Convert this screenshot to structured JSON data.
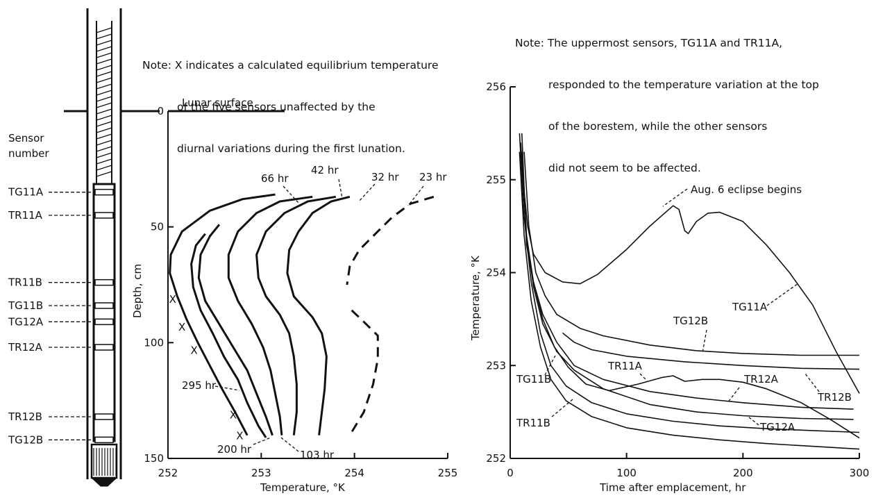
{
  "notes": {
    "left": [
      "Note: X indicates a calculated equilibrium temperature",
      "of the five sensors unaffected by the",
      "diurnal variations during the first lunation."
    ],
    "right": [
      "Note: The uppermost sensors, TG11A and TR11A,",
      "responded to the temperature variation at the top",
      "of the borestem, while the other sensors",
      "did not seem to be affected."
    ]
  },
  "probe": {
    "title_line1": "Sensor",
    "title_line2": "number",
    "sensors": [
      {
        "label": "TG11A",
        "depth": 35
      },
      {
        "label": "TR11A",
        "depth": 45
      },
      {
        "label": "TR11B",
        "depth": 74
      },
      {
        "label": "TG11B",
        "depth": 84
      },
      {
        "label": "TG12A",
        "depth": 91
      },
      {
        "label": "TR12A",
        "depth": 102
      },
      {
        "label": "TR12B",
        "depth": 132
      },
      {
        "label": "TG12B",
        "depth": 142
      }
    ]
  },
  "chart_data": [
    {
      "type": "line",
      "xlabel": "Temperature, °K",
      "ylabel": "Depth, cm",
      "xlim": [
        252,
        255
      ],
      "ylim": [
        0,
        150
      ],
      "y_inverted": true,
      "xticks": [
        "252",
        "253",
        "254",
        "255"
      ],
      "yticks": [
        "0",
        "50",
        "100",
        "150"
      ],
      "surface_label": "Lunar surface",
      "series": [
        {
          "name": "23 hr",
          "dashed": true,
          "points": [
            [
              254.85,
              37
            ],
            [
              254.6,
              40
            ],
            [
              254.4,
              46
            ],
            [
              254.2,
              54
            ],
            [
              254.05,
              60
            ],
            [
              253.95,
              67
            ],
            [
              253.92,
              75
            ]
          ]
        },
        {
          "name": "23 hr",
          "dashed": true,
          "points": [
            [
              253.97,
              86
            ],
            [
              254.1,
              91
            ],
            [
              254.25,
              97
            ],
            [
              254.25,
              107
            ],
            [
              254.2,
              118
            ],
            [
              254.1,
              130
            ],
            [
              253.95,
              140
            ]
          ]
        },
        {
          "name": "32 hr",
          "points": [
            [
              253.95,
              37
            ],
            [
              253.75,
              39
            ],
            [
              253.55,
              44
            ],
            [
              253.4,
              52
            ],
            [
              253.3,
              60
            ],
            [
              253.28,
              70
            ],
            [
              253.35,
              80
            ],
            [
              253.55,
              89
            ],
            [
              253.65,
              96
            ],
            [
              253.7,
              106
            ],
            [
              253.68,
              120
            ],
            [
              253.62,
              140
            ]
          ]
        },
        {
          "name": "42 hr",
          "points": [
            [
              253.8,
              37
            ],
            [
              253.5,
              39
            ],
            [
              253.25,
              44
            ],
            [
              253.05,
              52
            ],
            [
              252.95,
              62
            ],
            [
              252.97,
              72
            ],
            [
              253.05,
              80
            ],
            [
              253.2,
              88
            ],
            [
              253.3,
              96
            ],
            [
              253.35,
              106
            ],
            [
              253.38,
              118
            ],
            [
              253.38,
              130
            ],
            [
              253.35,
              140
            ]
          ]
        },
        {
          "name": "66 hr",
          "points": [
            [
              253.55,
              37
            ],
            [
              253.2,
              39
            ],
            [
              252.95,
              44
            ],
            [
              252.75,
              52
            ],
            [
              252.65,
              62
            ],
            [
              252.65,
              72
            ],
            [
              252.75,
              82
            ],
            [
              252.9,
              92
            ],
            [
              253.02,
              102
            ],
            [
              253.1,
              112
            ],
            [
              253.15,
              122
            ],
            [
              253.2,
              132
            ],
            [
              253.22,
              140
            ]
          ]
        },
        {
          "name": "",
          "points": [
            [
              252.55,
              49
            ],
            [
              252.45,
              54
            ],
            [
              252.35,
              62
            ],
            [
              252.33,
              72
            ],
            [
              252.4,
              82
            ],
            [
              252.55,
              92
            ],
            [
              252.7,
              102
            ],
            [
              252.85,
              112
            ],
            [
              252.95,
              122
            ],
            [
              253.05,
              132
            ],
            [
              253.12,
              140
            ]
          ]
        },
        {
          "name": "",
          "points": [
            [
              252.4,
              53
            ],
            [
              252.3,
              58
            ],
            [
              252.25,
              66
            ],
            [
              252.27,
              76
            ],
            [
              252.35,
              86
            ],
            [
              252.48,
              96
            ],
            [
              252.6,
              106
            ],
            [
              252.75,
              116
            ],
            [
              252.85,
              126
            ],
            [
              252.97,
              136
            ],
            [
              253.05,
              141
            ]
          ]
        },
        {
          "name": "",
          "points": [
            [
              253.15,
              36
            ],
            [
              252.8,
              38
            ],
            [
              252.45,
              43
            ],
            [
              252.15,
              52
            ],
            [
              252.03,
              62
            ],
            [
              252.02,
              70
            ],
            [
              252.1,
              80
            ],
            [
              252.2,
              90
            ],
            [
              252.32,
              100
            ],
            [
              252.45,
              110
            ],
            [
              252.58,
              120
            ],
            [
              252.72,
              130
            ],
            [
              252.85,
              140
            ]
          ]
        }
      ],
      "equilibrium_points": [
        [
          252.05,
          81
        ],
        [
          252.15,
          93
        ],
        [
          252.28,
          103
        ],
        [
          252.7,
          131
        ],
        [
          252.77,
          140
        ]
      ],
      "annotations": [
        "66 hr",
        "42 hr",
        "32 hr",
        "23 hr",
        "295 hr",
        "200 hr",
        "103 hr"
      ],
      "x_marker": "X"
    },
    {
      "type": "line",
      "xlabel": "Time after emplacement, hr",
      "ylabel": "Temperature, °K",
      "xlim": [
        0,
        300
      ],
      "ylim": [
        252,
        256
      ],
      "xticks": [
        "0",
        "100",
        "200",
        "300"
      ],
      "yticks": [
        "252",
        "253",
        "254",
        "255",
        "256"
      ],
      "event_label": "Aug. 6 eclipse begins",
      "series": [
        {
          "name": "TG11A",
          "points": [
            [
              9,
              255.4
            ],
            [
              11,
              255
            ],
            [
              15,
              254.5
            ],
            [
              20,
              254.2
            ],
            [
              30,
              254
            ],
            [
              45,
              253.9
            ],
            [
              60,
              253.88
            ],
            [
              75,
              253.98
            ],
            [
              100,
              254.25
            ],
            [
              120,
              254.5
            ],
            [
              140,
              254.72
            ],
            [
              145,
              254.68
            ],
            [
              150,
              254.45
            ],
            [
              153,
              254.42
            ],
            [
              160,
              254.55
            ],
            [
              170,
              254.64
            ],
            [
              180,
              254.65
            ],
            [
              200,
              254.55
            ],
            [
              220,
              254.3
            ],
            [
              240,
              254
            ],
            [
              260,
              253.65
            ],
            [
              280,
              253.15
            ],
            [
              300,
              252.7
            ]
          ]
        },
        {
          "name": "TG12B",
          "points": [
            [
              12,
              255.3
            ],
            [
              16,
              254.5
            ],
            [
              22,
              254
            ],
            [
              30,
              253.75
            ],
            [
              40,
              253.55
            ],
            [
              60,
              253.4
            ],
            [
              80,
              253.32
            ],
            [
              120,
              253.22
            ],
            [
              160,
              253.16
            ],
            [
              200,
              253.13
            ],
            [
              250,
              253.11
            ],
            [
              300,
              253.11
            ]
          ]
        },
        {
          "name": "TR12B",
          "points": [
            [
              45,
              253.35
            ],
            [
              55,
              253.25
            ],
            [
              70,
              253.17
            ],
            [
              100,
              253.1
            ],
            [
              150,
              253.04
            ],
            [
              200,
              253
            ],
            [
              250,
              252.97
            ],
            [
              300,
              252.96
            ]
          ]
        },
        {
          "name": "TR11A",
          "points": [
            [
              10,
              255.5
            ],
            [
              14,
              254.3
            ],
            [
              20,
              253.9
            ],
            [
              28,
              253.5
            ],
            [
              38,
              253.2
            ],
            [
              50,
              252.98
            ],
            [
              65,
              252.8
            ],
            [
              85,
              252.73
            ],
            [
              110,
              252.8
            ],
            [
              130,
              252.87
            ],
            [
              140,
              252.89
            ],
            [
              150,
              252.83
            ],
            [
              165,
              252.85
            ],
            [
              180,
              252.85
            ],
            [
              200,
              252.82
            ],
            [
              220,
              252.75
            ],
            [
              250,
              252.6
            ],
            [
              275,
              252.42
            ],
            [
              300,
              252.22
            ]
          ]
        },
        {
          "name": "TR12A",
          "points": [
            [
              10,
              255.2
            ],
            [
              14,
              254.4
            ],
            [
              20,
              253.9
            ],
            [
              28,
              253.55
            ],
            [
              40,
              253.25
            ],
            [
              55,
              253
            ],
            [
              80,
              252.85
            ],
            [
              120,
              252.72
            ],
            [
              160,
              252.65
            ],
            [
              200,
              252.6
            ],
            [
              250,
              252.55
            ],
            [
              295,
              252.53
            ]
          ]
        },
        {
          "name": "TG12A",
          "points": [
            [
              10,
              255.3
            ],
            [
              14,
              254.4
            ],
            [
              20,
              253.85
            ],
            [
              28,
              253.45
            ],
            [
              40,
              253.15
            ],
            [
              55,
              252.95
            ],
            [
              80,
              252.75
            ],
            [
              120,
              252.58
            ],
            [
              160,
              252.5
            ],
            [
              200,
              252.46
            ],
            [
              250,
              252.43
            ],
            [
              295,
              252.42
            ]
          ]
        },
        {
          "name": "TG11B",
          "points": [
            [
              8,
              255.5
            ],
            [
              12,
              254.6
            ],
            [
              18,
              253.9
            ],
            [
              26,
              253.35
            ],
            [
              35,
              253
            ],
            [
              48,
              252.78
            ],
            [
              70,
              252.6
            ],
            [
              100,
              252.48
            ],
            [
              140,
              252.4
            ],
            [
              180,
              252.35
            ],
            [
              220,
              252.32
            ],
            [
              260,
              252.3
            ],
            [
              300,
              252.28
            ]
          ]
        },
        {
          "name": "TR11B",
          "points": [
            [
              8,
              255.3
            ],
            [
              12,
              254.4
            ],
            [
              18,
              253.7
            ],
            [
              26,
              253.2
            ],
            [
              35,
              252.85
            ],
            [
              48,
              252.62
            ],
            [
              70,
              252.45
            ],
            [
              100,
              252.33
            ],
            [
              140,
              252.25
            ],
            [
              180,
              252.2
            ],
            [
              220,
              252.16
            ],
            [
              260,
              252.13
            ],
            [
              300,
              252.1
            ]
          ]
        }
      ],
      "labels": [
        "TG11A",
        "TG12B",
        "TR11A",
        "TR12A",
        "TR12B",
        "TG11B",
        "TG12A",
        "TR11B"
      ]
    }
  ]
}
